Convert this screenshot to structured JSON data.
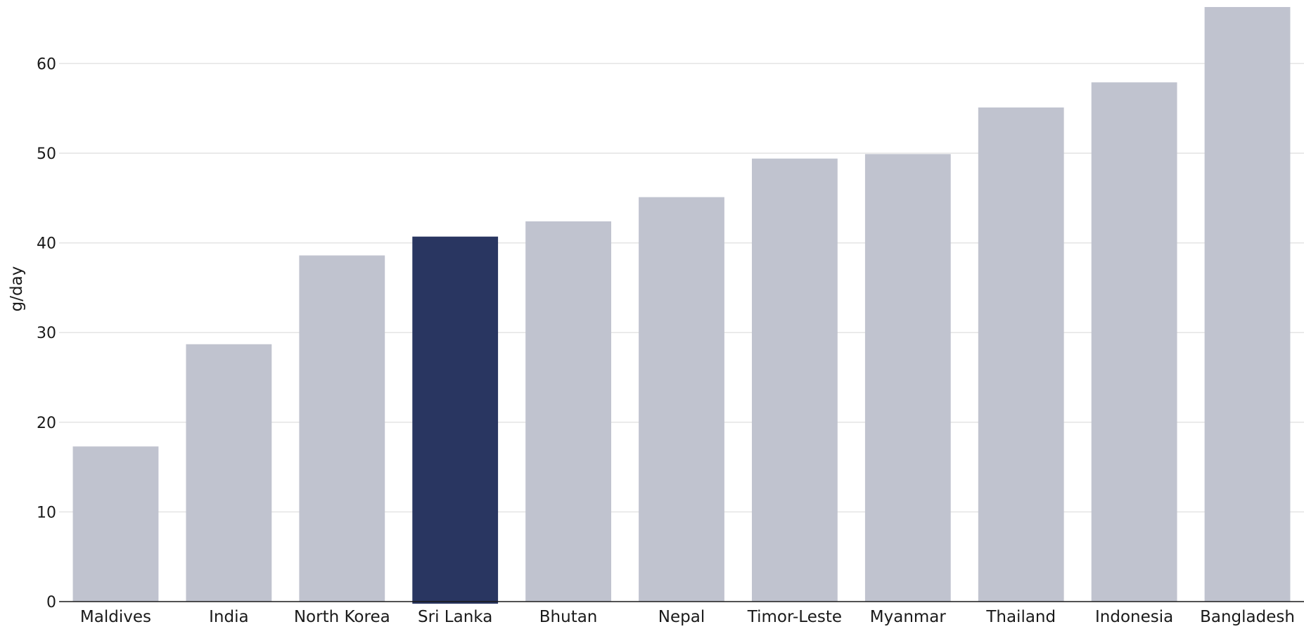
{
  "chart_data": {
    "type": "bar",
    "title": "",
    "xlabel": "",
    "ylabel": "g/day",
    "ylim": [
      0,
      66.3
    ],
    "yticks": [
      0,
      10,
      20,
      30,
      40,
      50,
      60
    ],
    "grid": true,
    "legend": "none",
    "categories": [
      "Maldives",
      "India",
      "North Korea",
      "Sri Lanka",
      "Bhutan",
      "Nepal",
      "Timor-Leste",
      "Myanmar",
      "Thailand",
      "Indonesia",
      "Bangladesh"
    ],
    "values": [
      17.3,
      28.7,
      38.6,
      40.7,
      42.4,
      45.1,
      49.4,
      49.9,
      55.1,
      57.9,
      66.3
    ],
    "highlight": "Sri Lanka",
    "colors": {
      "bar": "#c0c3cf",
      "highlight": "#293661",
      "grid": "#e4e4e4",
      "axis": "#1a1a1a"
    }
  }
}
